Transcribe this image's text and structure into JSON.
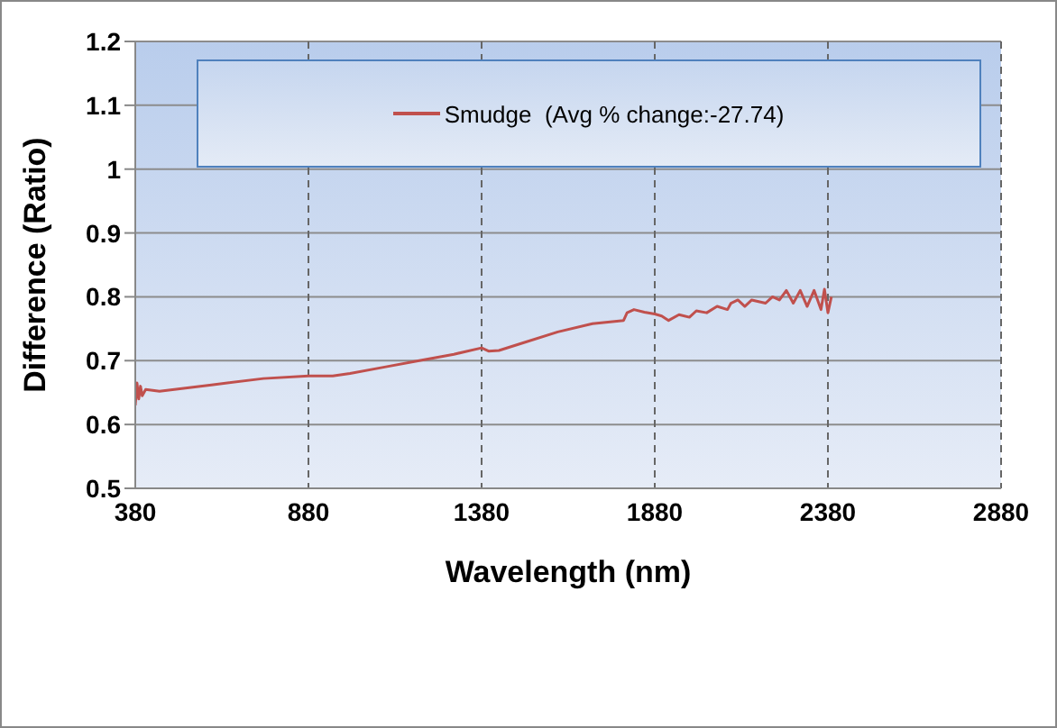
{
  "chart_data": {
    "type": "line",
    "xlabel": "Wavelength (nm)",
    "ylabel": "Difference (Ratio)",
    "xlim": [
      380,
      2880
    ],
    "xticks": [
      380,
      880,
      1380,
      1880,
      2380,
      2880
    ],
    "ylim": [
      0.5,
      1.2
    ],
    "yticks": [
      0.5,
      0.6,
      0.7,
      0.8,
      0.9,
      1,
      1.1,
      1.2
    ],
    "grid": true,
    "legend": "top",
    "marker": "none",
    "line_style": "solid",
    "x": [
      380,
      385,
      390,
      395,
      400,
      410,
      450,
      600,
      750,
      880,
      950,
      1000,
      1100,
      1200,
      1300,
      1380,
      1400,
      1430,
      1500,
      1600,
      1700,
      1790,
      1800,
      1820,
      1850,
      1880,
      1900,
      1920,
      1950,
      1980,
      2000,
      2030,
      2060,
      2090,
      2100,
      2120,
      2140,
      2160,
      2200,
      2220,
      2240,
      2260,
      2280,
      2300,
      2320,
      2340,
      2360,
      2370,
      2380,
      2390
    ],
    "series": [
      {
        "name": "Smudge  (Avg % change:-27.74)",
        "color": "#c0504d",
        "values": [
          0.63,
          0.665,
          0.64,
          0.66,
          0.645,
          0.655,
          0.652,
          0.662,
          0.672,
          0.676,
          0.676,
          0.68,
          0.69,
          0.7,
          0.71,
          0.72,
          0.715,
          0.716,
          0.728,
          0.745,
          0.758,
          0.763,
          0.775,
          0.78,
          0.776,
          0.773,
          0.77,
          0.763,
          0.772,
          0.768,
          0.778,
          0.775,
          0.785,
          0.78,
          0.79,
          0.795,
          0.785,
          0.795,
          0.79,
          0.8,
          0.795,
          0.81,
          0.79,
          0.81,
          0.785,
          0.81,
          0.78,
          0.812,
          0.775,
          0.8
        ]
      }
    ]
  }
}
